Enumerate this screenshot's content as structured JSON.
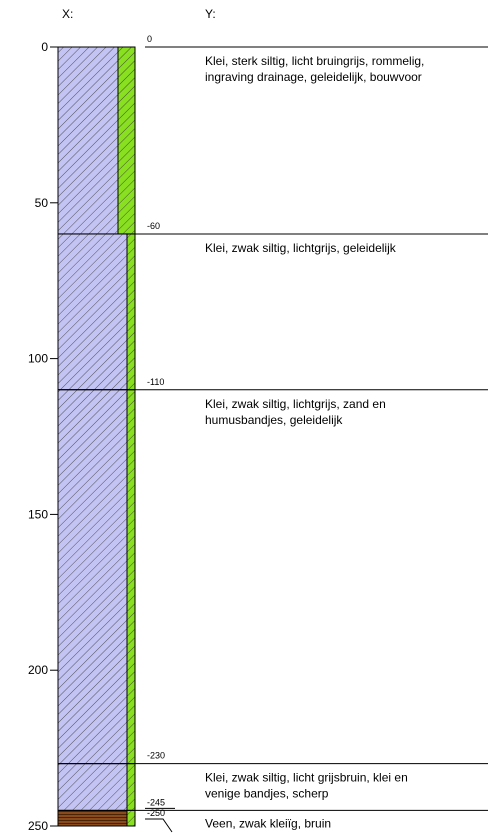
{
  "header": {
    "x_label": "X:",
    "y_label": "Y:"
  },
  "axis": {
    "ticks": [
      0,
      50,
      100,
      150,
      200,
      250
    ],
    "range": [
      0,
      250
    ]
  },
  "boundaries": [
    0,
    -60,
    -110,
    -230,
    -245,
    -250
  ],
  "layers": [
    {
      "top": 0,
      "bottom": 60,
      "fill": "#c4c4f4",
      "strip": "#88e020",
      "strip_wide": true,
      "description": [
        "Klei, sterk siltig, licht bruingrijs, rommelig,",
        "ingraving drainage, geleidelijk, bouwvoor"
      ]
    },
    {
      "top": 60,
      "bottom": 110,
      "fill": "#c4c4f4",
      "strip": "#88e020",
      "strip_wide": false,
      "description": [
        "Klei, zwak siltig, lichtgrijs, geleidelijk"
      ]
    },
    {
      "top": 110,
      "bottom": 230,
      "fill": "#c4c4f4",
      "strip": "#88e020",
      "strip_wide": false,
      "description": [
        "Klei, zwak siltig, lichtgrijs, zand en",
        "humusbandjes, geleidelijk"
      ]
    },
    {
      "top": 230,
      "bottom": 245,
      "fill": "#c4c4f4",
      "strip": "#88e020",
      "strip_wide": false,
      "description": [
        "Klei, zwak siltig, licht grijsbruin, klei en",
        "venige bandjes, scherp"
      ]
    },
    {
      "top": 245,
      "bottom": 250,
      "fill": "#8b4a1c",
      "strip": "#88e020",
      "strip_wide": false,
      "description": [
        "Veen, zwak kleiïg, bruin"
      ]
    }
  ]
}
